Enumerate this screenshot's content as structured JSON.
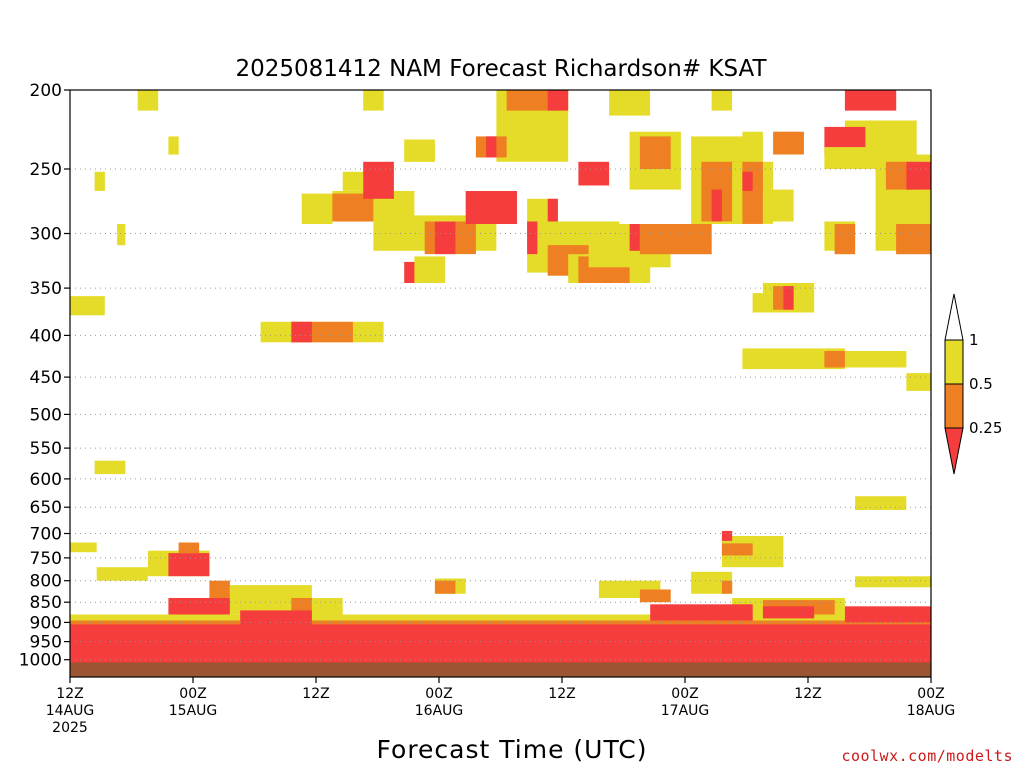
{
  "chart_data": {
    "type": "heatmap",
    "title": "2025081412 NAM Forecast Richardson# KSAT",
    "xlabel": "Forecast Time (UTC)",
    "ylabel": "",
    "credit": "coolwx.com/modelts",
    "y_ticks": [
      "200",
      "250",
      "300",
      "350",
      "400",
      "450",
      "500",
      "550",
      "600",
      "650",
      "700",
      "750",
      "800",
      "850",
      "900",
      "950",
      "1000"
    ],
    "x_ticks": [
      {
        "hour": 0,
        "lines": [
          "12Z",
          "14AUG",
          "2025"
        ]
      },
      {
        "hour": 12,
        "lines": [
          "00Z",
          "15AUG"
        ]
      },
      {
        "hour": 24,
        "lines": [
          "12Z"
        ]
      },
      {
        "hour": 36,
        "lines": [
          "00Z",
          "16AUG"
        ]
      },
      {
        "hour": 48,
        "lines": [
          "12Z"
        ]
      },
      {
        "hour": 60,
        "lines": [
          "00Z",
          "17AUG"
        ]
      },
      {
        "hour": 72,
        "lines": [
          "12Z"
        ]
      },
      {
        "hour": 84,
        "lines": [
          "00Z",
          "18AUG"
        ]
      }
    ],
    "xlim_hours": [
      0,
      84
    ],
    "ylim_hpa": [
      1050,
      200
    ],
    "y_scale": "log-pressure",
    "gridlines": "dotted horizontal at each pressure tick",
    "legend": {
      "placement": "right",
      "labels": [
        "1",
        "0.5",
        "0.25"
      ],
      "colors": {
        "low": "#f53d3d",
        "mid": "#ee7f22",
        "high": "#e5dc2a"
      }
    },
    "classes": {
      "r": "Ri < 0.25",
      "o": "0.25 <= Ri < 0.5",
      "y": "0.5 <= Ri < 1"
    },
    "surface_color": "#9b5533",
    "regions": [
      {
        "c": "y",
        "h": [
          6.6,
          8.6
        ],
        "p": [
          200,
          212
        ]
      },
      {
        "c": "y",
        "h": [
          9.6,
          10.6
        ],
        "p": [
          228,
          240
        ]
      },
      {
        "c": "y",
        "h": [
          2.4,
          3.4
        ],
        "p": [
          252,
          266
        ]
      },
      {
        "c": "y",
        "h": [
          4.6,
          5.4
        ],
        "p": [
          292,
          310
        ]
      },
      {
        "c": "y",
        "h": [
          0,
          3.4
        ],
        "p": [
          358,
          378
        ]
      },
      {
        "c": "y",
        "h": [
          18.6,
          30.6
        ],
        "p": [
          385,
          408
        ]
      },
      {
        "c": "o",
        "h": [
          21.6,
          27.6
        ],
        "p": [
          385,
          408
        ]
      },
      {
        "c": "r",
        "h": [
          21.6,
          23.6
        ],
        "p": [
          385,
          408
        ]
      },
      {
        "c": "y",
        "h": [
          2.4,
          5.4
        ],
        "p": [
          570,
          592
        ]
      },
      {
        "c": "y",
        "h": [
          0,
          2.6
        ],
        "p": [
          718,
          738
        ]
      },
      {
        "c": "y",
        "h": [
          28.6,
          30.6
        ],
        "p": [
          200,
          212
        ]
      },
      {
        "c": "y",
        "h": [
          32.6,
          35.6
        ],
        "p": [
          230,
          245
        ]
      },
      {
        "c": "y",
        "h": [
          26.6,
          28.6
        ],
        "p": [
          252,
          266
        ]
      },
      {
        "c": "y",
        "h": [
          22.6,
          25.6
        ],
        "p": [
          268,
          292
        ]
      },
      {
        "c": "y",
        "h": [
          25.6,
          33.6
        ],
        "p": [
          266,
          290
        ]
      },
      {
        "c": "o",
        "h": [
          25.6,
          29.6
        ],
        "p": [
          268,
          290
        ]
      },
      {
        "c": "r",
        "h": [
          28.6,
          31.6
        ],
        "p": [
          245,
          272
        ]
      },
      {
        "c": "y",
        "h": [
          29.6,
          41.6
        ],
        "p": [
          285,
          315
        ]
      },
      {
        "c": "o",
        "h": [
          34.6,
          39.6
        ],
        "p": [
          290,
          318
        ]
      },
      {
        "c": "r",
        "h": [
          35.6,
          37.6
        ],
        "p": [
          290,
          318
        ]
      },
      {
        "c": "r",
        "h": [
          32.6,
          34.6
        ],
        "p": [
          325,
          345
        ]
      },
      {
        "c": "y",
        "h": [
          33.6,
          36.6
        ],
        "p": [
          320,
          345
        ]
      },
      {
        "c": "y",
        "h": [
          41.6,
          48.6
        ],
        "p": [
          200,
          245
        ]
      },
      {
        "c": "o",
        "h": [
          42.6,
          47.6
        ],
        "p": [
          200,
          212
        ]
      },
      {
        "c": "r",
        "h": [
          46.6,
          48.6
        ],
        "p": [
          200,
          212
        ]
      },
      {
        "c": "o",
        "h": [
          39.6,
          42.6
        ],
        "p": [
          228,
          242
        ]
      },
      {
        "c": "r",
        "h": [
          40.6,
          41.6
        ],
        "p": [
          228,
          242
        ]
      },
      {
        "c": "y",
        "h": [
          38.6,
          43.6
        ],
        "p": [
          266,
          292
        ]
      },
      {
        "c": "r",
        "h": [
          38.6,
          43.6
        ],
        "p": [
          266,
          292
        ]
      },
      {
        "c": "y",
        "h": [
          44.6,
          47.6
        ],
        "p": [
          272,
          292
        ]
      },
      {
        "c": "r",
        "h": [
          46.6,
          47.6
        ],
        "p": [
          272,
          292
        ]
      },
      {
        "c": "y",
        "h": [
          44.6,
          53.6
        ],
        "p": [
          290,
          335
        ]
      },
      {
        "c": "o",
        "h": [
          46.6,
          52.6
        ],
        "p": [
          310,
          338
        ]
      },
      {
        "c": "r",
        "h": [
          44.6,
          45.6
        ],
        "p": [
          290,
          318
        ]
      },
      {
        "c": "y",
        "h": [
          48.6,
          56.6
        ],
        "p": [
          318,
          345
        ]
      },
      {
        "c": "o",
        "h": [
          49.6,
          54.6
        ],
        "p": [
          320,
          345
        ]
      },
      {
        "c": "y",
        "h": [
          52.6,
          56.6
        ],
        "p": [
          200,
          215
        ]
      },
      {
        "c": "y",
        "h": [
          54.6,
          59.6
        ],
        "p": [
          225,
          265
        ]
      },
      {
        "c": "o",
        "h": [
          55.6,
          58.6
        ],
        "p": [
          228,
          250
        ]
      },
      {
        "c": "r",
        "h": [
          49.6,
          52.6
        ],
        "p": [
          245,
          262
        ]
      },
      {
        "c": "y",
        "h": [
          50.6,
          58.6
        ],
        "p": [
          292,
          330
        ]
      },
      {
        "c": "o",
        "h": [
          55.6,
          62.6
        ],
        "p": [
          292,
          318
        ]
      },
      {
        "c": "r",
        "h": [
          54.6,
          55.6
        ],
        "p": [
          292,
          315
        ]
      },
      {
        "c": "y",
        "h": [
          62.6,
          64.6
        ],
        "p": [
          200,
          212
        ]
      },
      {
        "c": "y",
        "h": [
          60.6,
          66.6
        ],
        "p": [
          228,
          292
        ]
      },
      {
        "c": "o",
        "h": [
          61.6,
          65.6
        ],
        "p": [
          245,
          290
        ]
      },
      {
        "c": "r",
        "h": [
          62.6,
          63.6
        ],
        "p": [
          265,
          290
        ]
      },
      {
        "c": "y",
        "h": [
          65.6,
          67.6
        ],
        "p": [
          225,
          245
        ]
      },
      {
        "c": "y",
        "h": [
          64.6,
          68.6
        ],
        "p": [
          245,
          292
        ]
      },
      {
        "c": "o",
        "h": [
          65.6,
          67.6
        ],
        "p": [
          245,
          292
        ]
      },
      {
        "c": "r",
        "h": [
          65.6,
          66.6
        ],
        "p": [
          252,
          266
        ]
      },
      {
        "c": "o",
        "h": [
          68.6,
          71.6
        ],
        "p": [
          225,
          240
        ]
      },
      {
        "c": "y",
        "h": [
          67.6,
          70.6
        ],
        "p": [
          265,
          290
        ]
      },
      {
        "c": "y",
        "h": [
          66.6,
          68.6
        ],
        "p": [
          355,
          375
        ]
      },
      {
        "c": "y",
        "h": [
          67.6,
          72.6
        ],
        "p": [
          345,
          375
        ]
      },
      {
        "c": "o",
        "h": [
          68.6,
          70.6
        ],
        "p": [
          348,
          372
        ]
      },
      {
        "c": "r",
        "h": [
          69.6,
          70.6
        ],
        "p": [
          348,
          372
        ]
      },
      {
        "c": "y",
        "h": [
          65.6,
          75.6
        ],
        "p": [
          415,
          440
        ]
      },
      {
        "c": "o",
        "h": [
          73.6,
          78.6
        ],
        "p": [
          418,
          438
        ]
      },
      {
        "c": "y",
        "h": [
          75.6,
          81.6
        ],
        "p": [
          418,
          438
        ]
      },
      {
        "c": "r",
        "h": [
          75.6,
          80.6
        ],
        "p": [
          200,
          212
        ]
      },
      {
        "c": "y",
        "h": [
          75.6,
          82.6
        ],
        "p": [
          218,
          250
        ]
      },
      {
        "c": "r",
        "h": [
          73.6,
          77.6
        ],
        "p": [
          222,
          240
        ]
      },
      {
        "c": "y",
        "h": [
          78.6,
          84
        ],
        "p": [
          240,
          290
        ]
      },
      {
        "c": "o",
        "h": [
          79.6,
          82.6
        ],
        "p": [
          245,
          265
        ]
      },
      {
        "c": "r",
        "h": [
          81.6,
          84
        ],
        "p": [
          245,
          265
        ]
      },
      {
        "c": "y",
        "h": [
          73.6,
          76.6
        ],
        "p": [
          290,
          315
        ]
      },
      {
        "c": "o",
        "h": [
          74.6,
          76.6
        ],
        "p": [
          292,
          318
        ]
      },
      {
        "c": "y",
        "h": [
          78.6,
          84
        ],
        "p": [
          290,
          315
        ]
      },
      {
        "c": "o",
        "h": [
          80.6,
          84
        ],
        "p": [
          292,
          318
        ]
      },
      {
        "c": "y",
        "h": [
          73.6,
          77.6
        ],
        "p": [
          235,
          250
        ]
      },
      {
        "c": "y",
        "h": [
          81.6,
          84
        ],
        "p": [
          445,
          468
        ]
      },
      {
        "c": "y",
        "h": [
          76.6,
          81.6
        ],
        "p": [
          630,
          655
        ]
      },
      {
        "c": "y",
        "h": [
          2.6,
          7.6
        ],
        "p": [
          770,
          800
        ]
      },
      {
        "c": "y",
        "h": [
          7.6,
          13.6
        ],
        "p": [
          735,
          790
        ]
      },
      {
        "c": "r",
        "h": [
          9.6,
          13.6
        ],
        "p": [
          740,
          790
        ]
      },
      {
        "c": "o",
        "h": [
          10.6,
          12.6
        ],
        "p": [
          718,
          740
        ]
      },
      {
        "c": "o",
        "h": [
          13.6,
          15.6
        ],
        "p": [
          800,
          840
        ]
      },
      {
        "c": "y",
        "h": [
          15.6,
          23.6
        ],
        "p": [
          810,
          880
        ]
      },
      {
        "c": "o",
        "h": [
          21.6,
          23.6
        ],
        "p": [
          840,
          880
        ]
      },
      {
        "c": "y",
        "h": [
          23.6,
          26.6
        ],
        "p": [
          840,
          880
        ]
      },
      {
        "c": "y",
        "h": [
          35.6,
          38.6
        ],
        "p": [
          795,
          830
        ]
      },
      {
        "c": "o",
        "h": [
          35.6,
          37.6
        ],
        "p": [
          800,
          830
        ]
      },
      {
        "c": "y",
        "h": [
          51.6,
          57.6
        ],
        "p": [
          800,
          840
        ]
      },
      {
        "c": "o",
        "h": [
          55.6,
          58.6
        ],
        "p": [
          820,
          850
        ]
      },
      {
        "c": "y",
        "h": [
          60.6,
          64.6
        ],
        "p": [
          780,
          830
        ]
      },
      {
        "c": "o",
        "h": [
          63.6,
          64.6
        ],
        "p": [
          800,
          830
        ]
      },
      {
        "c": "y",
        "h": [
          63.6,
          69.6
        ],
        "p": [
          705,
          770
        ]
      },
      {
        "c": "o",
        "h": [
          63.6,
          66.6
        ],
        "p": [
          720,
          745
        ]
      },
      {
        "c": "r",
        "h": [
          63.6,
          64.6
        ],
        "p": [
          695,
          715
        ]
      },
      {
        "c": "y",
        "h": [
          64.6,
          75.6
        ],
        "p": [
          840,
          900
        ]
      },
      {
        "c": "o",
        "h": [
          67.6,
          74.6
        ],
        "p": [
          845,
          880
        ]
      },
      {
        "c": "y",
        "h": [
          76.6,
          84
        ],
        "p": [
          790,
          815
        ]
      },
      {
        "c": "y",
        "h": [
          0,
          84
        ],
        "p": [
          880,
          918
        ]
      },
      {
        "c": "o",
        "h": [
          0,
          84
        ],
        "p": [
          895,
          920
        ]
      },
      {
        "c": "r",
        "h": [
          0,
          84
        ],
        "p": [
          905,
          1008
        ]
      },
      {
        "c": "r",
        "h": [
          9.6,
          15.6
        ],
        "p": [
          840,
          880
        ]
      },
      {
        "c": "r",
        "h": [
          16.6,
          23.6
        ],
        "p": [
          870,
          905
        ]
      },
      {
        "c": "r",
        "h": [
          56.6,
          66.6
        ],
        "p": [
          855,
          895
        ]
      },
      {
        "c": "r",
        "h": [
          67.6,
          72.6
        ],
        "p": [
          860,
          890
        ]
      },
      {
        "c": "r",
        "h": [
          75.6,
          84
        ],
        "p": [
          860,
          900
        ]
      }
    ]
  }
}
